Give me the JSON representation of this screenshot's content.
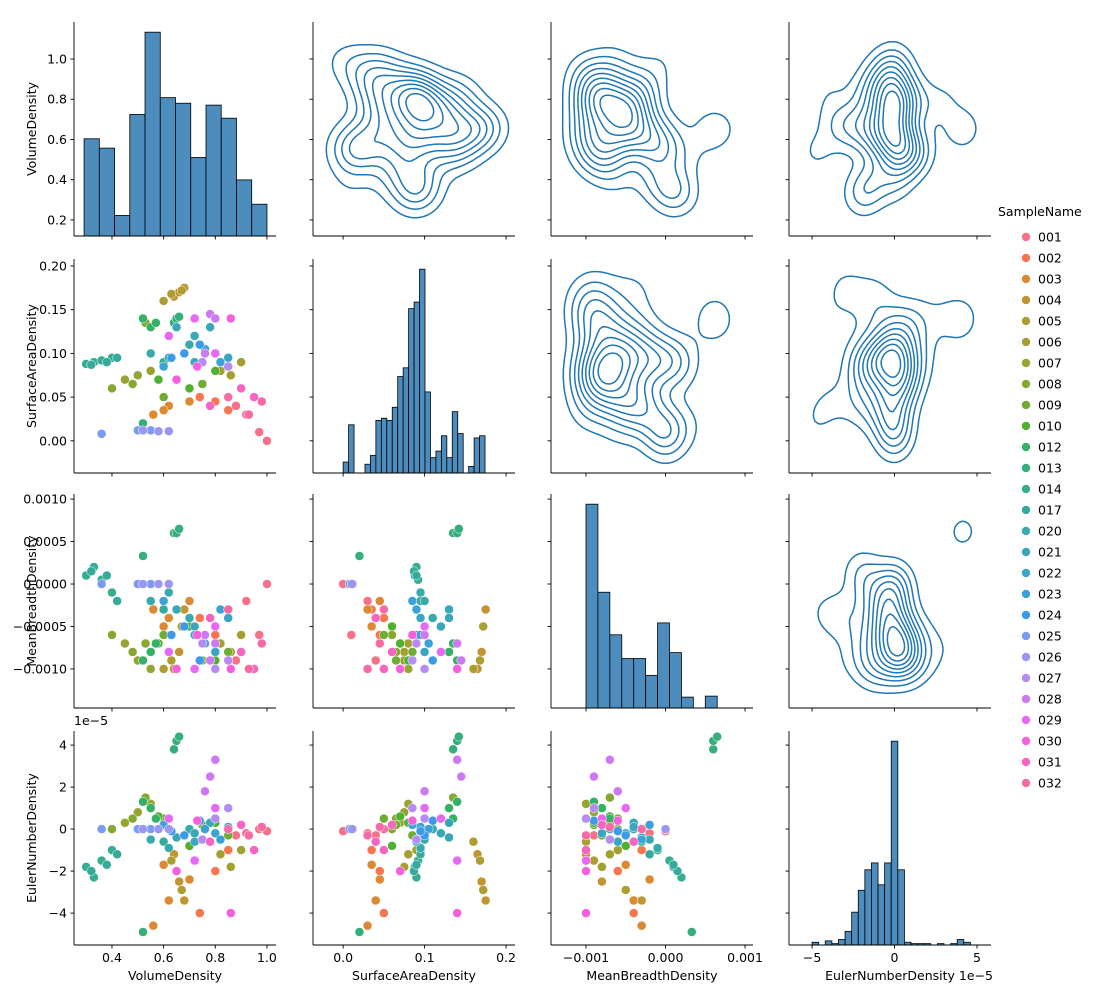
{
  "chart_data": {
    "type": "pairplot",
    "variables": [
      "VolumeDensity",
      "SurfaceAreaDensity",
      "MeanBreadthDensity",
      "EulerNumberDensity"
    ],
    "axes": [
      {
        "xlim": [
          0.253,
          1.035
        ],
        "ylim": [
          0.12,
          1.184
        ],
        "xticks": [
          0.4,
          0.6,
          0.8,
          {
            "value": 1.0,
            "label": "1.0"
          }
        ],
        "yticks": [
          0.2,
          0.4,
          0.6,
          0.8,
          {
            "value": 1.0,
            "label": "1.0"
          }
        ]
      },
      {
        "xlim": [
          -0.037,
          0.211
        ],
        "ylim": [
          -0.0368,
          0.208
        ],
        "xticks": [
          {
            "value": 0,
            "label": "0.0"
          },
          0.1,
          0.2
        ],
        "yticks": [
          {
            "value": 0,
            "label": "0.00"
          },
          0.05,
          {
            "value": 0.1,
            "label": "0.10"
          },
          0.15,
          {
            "value": 0.2,
            "label": "0.20"
          }
        ]
      },
      {
        "xlim": [
          -0.00144,
          0.0011
        ],
        "ylim": [
          -0.00146,
          0.00106
        ],
        "xticks": [
          {
            "value": -0.001,
            "label": "−0.001"
          },
          {
            "value": 0,
            "label": "0.000"
          },
          0.001
        ],
        "yticks": [
          {
            "value": -0.001,
            "label": "−0.0010"
          },
          {
            "value": -0.0005,
            "label": "−0.0005"
          },
          {
            "value": 0,
            "label": "0.0000"
          },
          0.0005,
          {
            "value": 0.001,
            "label": "0.0010"
          }
        ]
      },
      {
        "xlim": [
          -6.4,
          5.85
        ],
        "ylim": [
          -5.52,
          4.67
        ],
        "xticks": [
          {
            "value": -5,
            "label": "−5"
          },
          0,
          5
        ],
        "yticks": [
          {
            "value": -4,
            "label": "−4"
          },
          {
            "value": -2,
            "label": "−2"
          },
          0,
          2,
          4
        ],
        "offset_label": "1e−5"
      }
    ],
    "legend_title": "SampleName",
    "hist_color": "#4c8dbd",
    "kde_color": "#1f77b4",
    "histograms": [
      {
        "bins": [
          0.292,
          0.351,
          0.41,
          0.469,
          0.528,
          0.587,
          0.646,
          0.705,
          0.764,
          0.823,
          0.882,
          0.941,
          1.0
        ],
        "counts": [
          52,
          47,
          11,
          65,
          109,
          74,
          71,
          42,
          70,
          63,
          30,
          17
        ]
      },
      {
        "bins": [
          0,
          0.0067,
          0.0134,
          0.0201,
          0.0268,
          0.0335,
          0.0402,
          0.0469,
          0.0536,
          0.0603,
          0.067,
          0.0737,
          0.0804,
          0.0871,
          0.0938,
          0.1005,
          0.1072,
          0.1139,
          0.1206,
          0.1273,
          0.134,
          0.1407,
          0.1474,
          0.1541,
          0.1608,
          0.1675,
          0.1742
        ],
        "counts": [
          5,
          22,
          0,
          0,
          4,
          8,
          24,
          25,
          24,
          30,
          44,
          48,
          75,
          78,
          93,
          37,
          7,
          10,
          17,
          7,
          28,
          18,
          0,
          3,
          16,
          17
        ]
      },
      {
        "bins": [
          -0.001,
          -0.00085,
          -0.0007,
          -0.00055,
          -0.0004,
          -0.00025,
          -0.0001,
          5e-05,
          0.0002,
          0.00035,
          0.0005,
          0.00065
        ],
        "counts": [
          206,
          117,
          74,
          50,
          50,
          33,
          86,
          56,
          11,
          0,
          12
        ]
      },
      {
        "bins": [
          -5.0,
          -4.6,
          -4.2,
          -3.8,
          -3.4,
          -3.0,
          -2.6,
          -2.2,
          -1.8,
          -1.4,
          -1.0,
          -0.6,
          -0.2,
          0.2,
          0.6,
          1.0,
          1.4,
          1.8,
          2.2,
          2.6,
          3.0,
          3.4,
          3.8,
          4.2,
          4.6
        ],
        "counts": [
          2,
          0,
          3,
          1,
          4,
          10,
          24,
          40,
          55,
          60,
          44,
          60,
          149,
          55,
          2,
          1,
          1,
          1,
          0,
          1,
          0,
          1,
          4,
          2
        ]
      }
    ],
    "series": [
      {
        "name": "001",
        "color": "#f77189",
        "values": [
          [
            0.92,
            0.97,
            1.0,
            0.88
          ],
          [
            0.03,
            0.01,
            0.0,
            0.04
          ],
          [
            -0.0002,
            -0.0006,
            0.0,
            -0.0009
          ],
          [
            -0.2,
            0.0,
            -0.1,
            -0.3
          ]
        ]
      },
      {
        "name": "002",
        "color": "#f7754f",
        "values": [
          [
            0.74,
            0.8,
            0.85
          ],
          [
            0.05,
            0.045,
            0.035
          ],
          [
            -0.0004,
            -0.0006,
            -0.0003
          ],
          [
            -4.0,
            -2.0,
            -1.0
          ]
        ]
      },
      {
        "name": "003",
        "color": "#dc8932",
        "values": [
          [
            0.56,
            0.62,
            0.7,
            0.6
          ],
          [
            0.03,
            0.04,
            0.045,
            0.035
          ],
          [
            -0.0003,
            -0.0004,
            -0.0002,
            -0.0005
          ],
          [
            -4.6,
            -3.4,
            -2.4,
            -1.7
          ]
        ]
      },
      {
        "name": "004",
        "color": "#c39532",
        "values": [
          [
            0.64,
            0.66,
            0.68
          ],
          [
            0.165,
            0.17,
            0.175
          ],
          [
            -0.001,
            -0.0008,
            -0.0003
          ],
          [
            -1.2,
            -2.5,
            -3.4
          ]
        ]
      },
      {
        "name": "005",
        "color": "#ae9d31",
        "values": [
          [
            0.6,
            0.63,
            0.67
          ],
          [
            0.16,
            0.168,
            0.172
          ],
          [
            -0.001,
            -0.0009,
            -0.0005
          ],
          [
            -0.6,
            -1.5,
            -2.9
          ]
        ]
      },
      {
        "name": "006",
        "color": "#a3a032",
        "values": [
          [
            0.82,
            0.86,
            0.9
          ],
          [
            0.08,
            0.075,
            0.09
          ],
          [
            -0.0007,
            -0.0008,
            -0.0006
          ],
          [
            -1.2,
            -1.8,
            -1.0
          ]
        ]
      },
      {
        "name": "007",
        "color": "#97a431",
        "values": [
          [
            0.45,
            0.5,
            0.55
          ],
          [
            0.07,
            0.075,
            0.08
          ],
          [
            -0.0007,
            -0.0009,
            -0.001
          ],
          [
            0.3,
            0.8,
            1.2
          ]
        ]
      },
      {
        "name": "008",
        "color": "#86a831",
        "values": [
          [
            0.4,
            0.48,
            0.53
          ],
          [
            0.06,
            0.065,
            0.135
          ],
          [
            -0.0006,
            -0.0008,
            -0.0007
          ],
          [
            0.0,
            0.5,
            1.5
          ]
        ]
      },
      {
        "name": "009",
        "color": "#6fac31",
        "values": [
          [
            0.6,
            0.75,
            0.85
          ],
          [
            0.05,
            0.065,
            0.085
          ],
          [
            -0.0006,
            -0.0009,
            -0.0008
          ],
          [
            0.5,
            0.2,
            -0.3
          ]
        ]
      },
      {
        "name": "010",
        "color": "#50b131",
        "values": [
          [
            0.58,
            0.7,
            0.8
          ],
          [
            0.07,
            0.06,
            0.08
          ],
          [
            -0.0007,
            -0.0005,
            -0.0009
          ],
          [
            0.6,
            -0.8,
            0.3
          ]
        ]
      },
      {
        "name": "012",
        "color": "#33b165",
        "values": [
          [
            0.55,
            0.57,
            0.52
          ],
          [
            0.13,
            0.135,
            0.14
          ],
          [
            -0.0008,
            -0.0007,
            -0.0009
          ],
          [
            1.0,
            0.5,
            1.3
          ]
        ]
      },
      {
        "name": "013",
        "color": "#34af7b",
        "values": [
          [
            0.64,
            0.65,
            0.66,
            0.52
          ],
          [
            0.135,
            0.14,
            0.142,
            0.02
          ],
          [
            0.0006,
            0.0006,
            0.00065,
            0.00033
          ],
          [
            3.8,
            4.2,
            4.4,
            -4.9
          ]
        ]
      },
      {
        "name": "014",
        "color": "#35ad8f",
        "values": [
          [
            0.3,
            0.33,
            0.36,
            0.4
          ],
          [
            0.088,
            0.09,
            0.092,
            0.095
          ],
          [
            0.0001,
            0.0002,
            5e-05,
            -0.0001
          ],
          [
            -1.8,
            -2.3,
            -1.5,
            -1.0
          ]
        ]
      },
      {
        "name": "017",
        "color": "#36ab9d",
        "values": [
          [
            0.32,
            0.38,
            0.42,
            0.6
          ],
          [
            0.087,
            0.09,
            0.095,
            0.09
          ],
          [
            0.00015,
            0.0001,
            -0.0002,
            -0.0003
          ],
          [
            -2.0,
            -1.7,
            -1.2,
            -0.6
          ]
        ]
      },
      {
        "name": "020",
        "color": "#37aaab",
        "values": [
          [
            0.55,
            0.62,
            0.7
          ],
          [
            0.1,
            0.095,
            0.11
          ],
          [
            -0.0002,
            -0.0001,
            -0.0004
          ],
          [
            -0.5,
            -0.9,
            0.0
          ]
        ]
      },
      {
        "name": "021",
        "color": "#38a8b8",
        "values": [
          [
            0.65,
            0.72,
            0.78
          ],
          [
            0.13,
            0.12,
            0.13
          ],
          [
            -0.0003,
            -0.0005,
            -0.0004
          ],
          [
            -0.4,
            -0.2,
            0.3
          ]
        ]
      },
      {
        "name": "022",
        "color": "#39a6c6",
        "values": [
          [
            0.72,
            0.8,
            0.85
          ],
          [
            0.09,
            0.1,
            0.095
          ],
          [
            -0.0006,
            -0.0008,
            -0.0004
          ],
          [
            -0.6,
            -0.2,
            0.1
          ]
        ]
      },
      {
        "name": "023",
        "color": "#3ba2d8",
        "values": [
          [
            0.76,
            0.82,
            0.6
          ],
          [
            0.105,
            0.09,
            0.085
          ],
          [
            -0.0007,
            -0.0003,
            -0.0002
          ],
          [
            0.0,
            -0.5,
            0.2
          ]
        ]
      },
      {
        "name": "024",
        "color": "#3d9ae9",
        "values": [
          [
            0.68,
            0.74,
            0.63
          ],
          [
            0.1,
            0.11,
            0.095
          ],
          [
            -0.0005,
            -0.0009,
            -0.0006
          ],
          [
            -0.3,
            0.4,
            -0.1
          ]
        ]
      },
      {
        "name": "025",
        "color": "#7a9af4",
        "values": [
          [
            0.36,
            0.5,
            0.55
          ],
          [
            0.008,
            0.012,
            0.012
          ],
          [
            0.0,
            0.0,
            0.0
          ],
          [
            0.0,
            0.0,
            0.0
          ]
        ]
      },
      {
        "name": "026",
        "color": "#9c95f4",
        "values": [
          [
            0.52,
            0.58,
            0.62
          ],
          [
            0.012,
            0.011,
            0.011
          ],
          [
            0.0,
            0.0,
            0.0
          ],
          [
            0.0,
            0.0,
            0.0
          ]
        ]
      },
      {
        "name": "027",
        "color": "#b58cf4",
        "values": [
          [
            0.75,
            0.8,
            0.85
          ],
          [
            0.09,
            0.1,
            0.085
          ],
          [
            -0.0007,
            -0.001,
            -0.0009
          ],
          [
            -0.5,
            0.5,
            1.0
          ]
        ]
      },
      {
        "name": "028",
        "color": "#cd79f4",
        "values": [
          [
            0.78,
            0.8,
            0.76
          ],
          [
            0.145,
            0.14,
            0.1
          ],
          [
            -0.0009,
            -0.0007,
            -0.0006
          ],
          [
            2.5,
            3.3,
            1.8
          ]
        ]
      },
      {
        "name": "029",
        "color": "#e768f4",
        "values": [
          [
            0.62,
            0.72,
            0.8
          ],
          [
            0.12,
            0.14,
            0.1
          ],
          [
            -0.0008,
            -0.001,
            -0.0005
          ],
          [
            0.5,
            -1.5,
            1.0
          ]
        ]
      },
      {
        "name": "030",
        "color": "#f561dd",
        "values": [
          [
            0.65,
            0.73,
            0.86
          ],
          [
            0.07,
            0.085,
            0.14
          ],
          [
            -0.001,
            -0.0006,
            -0.001
          ],
          [
            -2.0,
            0.4,
            -4.0
          ]
        ]
      },
      {
        "name": "031",
        "color": "#f565c1",
        "values": [
          [
            0.78,
            0.9,
            0.95
          ],
          [
            0.04,
            0.06,
            0.05
          ],
          [
            -0.0004,
            -0.0008,
            -0.001
          ],
          [
            -0.6,
            0.2,
            -1.0
          ]
        ]
      },
      {
        "name": "032",
        "color": "#f66ba6",
        "values": [
          [
            0.85,
            0.93,
            0.98
          ],
          [
            0.05,
            0.03,
            0.045
          ],
          [
            -0.0003,
            -0.001,
            -0.0007
          ],
          [
            0.0,
            -0.3,
            0.1
          ]
        ]
      }
    ]
  }
}
